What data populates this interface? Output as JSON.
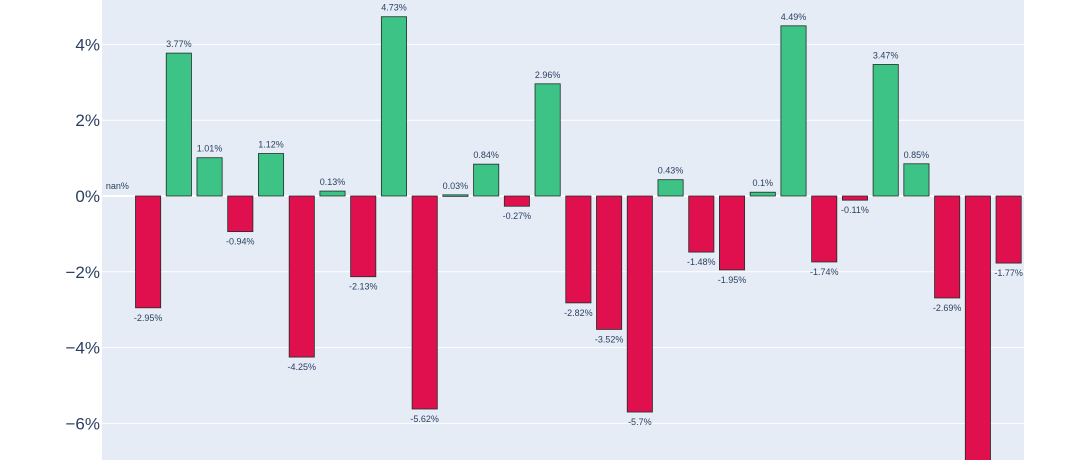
{
  "chart_data": {
    "type": "bar",
    "title": "",
    "xlabel": "",
    "ylabel": "",
    "ylim": [
      -7,
      5.2
    ],
    "grid": true,
    "y_ticks": [
      {
        "value": 4,
        "label": "4%"
      },
      {
        "value": 2,
        "label": "2%"
      },
      {
        "value": 0,
        "label": "0%"
      },
      {
        "value": -2,
        "label": "−2%"
      },
      {
        "value": -4,
        "label": "−4%"
      },
      {
        "value": -6,
        "label": "−6%"
      }
    ],
    "values": [
      null,
      -2.95,
      3.77,
      1.01,
      -0.94,
      1.12,
      -4.25,
      0.13,
      -2.13,
      4.73,
      -5.62,
      0.03,
      0.84,
      -0.27,
      2.96,
      -2.82,
      -3.52,
      -5.7,
      0.43,
      -1.48,
      -1.95,
      0.1,
      4.49,
      -1.74,
      -0.11,
      3.47,
      0.85,
      -2.69,
      -7.5,
      -1.77
    ],
    "labels": [
      "nan%",
      "-2.95%",
      "3.77%",
      "1.01%",
      "-0.94%",
      "1.12%",
      "-4.25%",
      "0.13%",
      "-2.13%",
      "4.73%",
      "-5.62%",
      "0.03%",
      "0.84%",
      "-0.27%",
      "2.96%",
      "-2.82%",
      "-3.52%",
      "-5.7%",
      "0.43%",
      "-1.48%",
      "-1.95%",
      "0.1%",
      "4.49%",
      "-1.74%",
      "-0.11%",
      "3.47%",
      "0.85%",
      "-2.69%",
      "",
      "-1.77%"
    ],
    "colors": {
      "positive": "#3dc385",
      "negative": "#e0104f",
      "plot_bg": "#e5ecf6",
      "grid": "#ffffff",
      "text": "#2a3f5f"
    }
  }
}
